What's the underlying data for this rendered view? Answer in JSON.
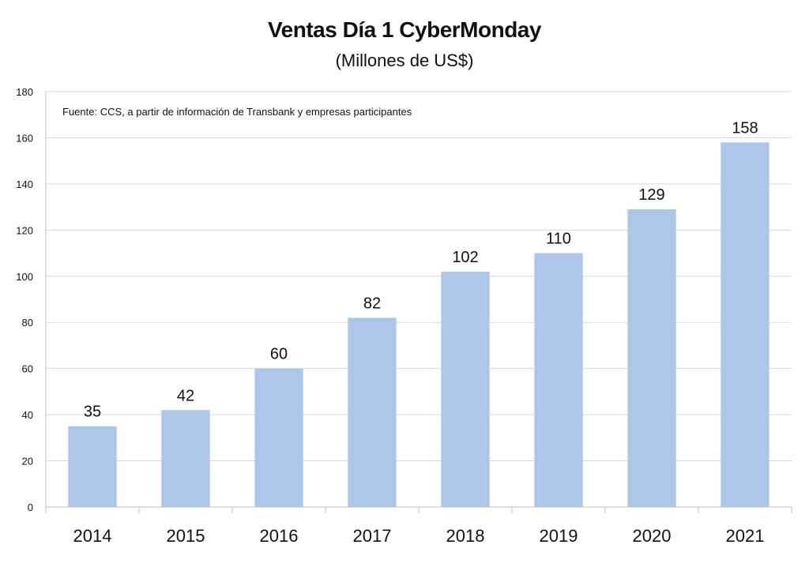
{
  "chart_data": {
    "type": "bar",
    "title": "Ventas Día 1 CyberMonday",
    "subtitle": "(Millones de US$)",
    "source_note": "Fuente: CCS, a partir de información de Transbank y empresas participantes",
    "categories": [
      "2014",
      "2015",
      "2016",
      "2017",
      "2018",
      "2019",
      "2020",
      "2021"
    ],
    "values": [
      35,
      42,
      60,
      82,
      102,
      110,
      129,
      158
    ],
    "ylim": [
      0,
      180
    ],
    "yticks": [
      0,
      20,
      40,
      60,
      80,
      100,
      120,
      140,
      160,
      180
    ],
    "grid": true,
    "data_labels": true,
    "bar_color": "#aec7e8",
    "xlabel": "",
    "ylabel": ""
  }
}
